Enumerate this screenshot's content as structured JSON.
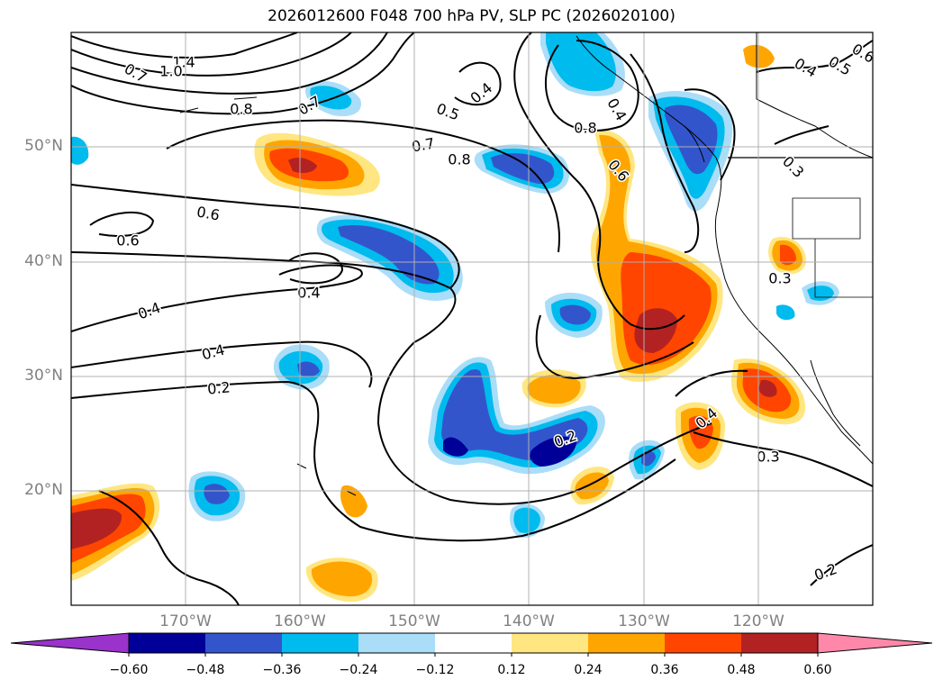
{
  "title": "2026012600 F048 700 hPa PV, SLP PC (2026020100)",
  "lat_labels": [
    "50°N",
    "40°N",
    "30°N",
    "20°N"
  ],
  "lon_labels": [
    "170°W",
    "160°W",
    "150°W",
    "140°W",
    "130°W",
    "120°W"
  ],
  "colorbar": {
    "ticks": [
      "−0.60",
      "−0.48",
      "−0.36",
      "−0.24",
      "−0.12",
      "0.12",
      "0.24",
      "0.36",
      "0.48",
      "0.60"
    ],
    "colors": [
      "#9933cc",
      "#000099",
      "#3355cc",
      "#00bbee",
      "#aaddf8",
      "#ffffff",
      "#ffe680",
      "#ffa500",
      "#ff4500",
      "#b22222",
      "#ff88aa"
    ]
  },
  "contour_labels": [
    "1.4",
    "1.0",
    "0.7",
    "0.8",
    "0.7",
    "0.5",
    "0.4",
    "0.7",
    "0.8",
    "0.8",
    "0.6",
    "0.6",
    "0.6",
    "0.4",
    "0.4",
    "0.4",
    "0.2",
    "0.2",
    "0.3",
    "0.3",
    "0.4",
    "0.3",
    "0.2",
    "0.4",
    "0.5",
    "0.6",
    "0.4"
  ]
}
